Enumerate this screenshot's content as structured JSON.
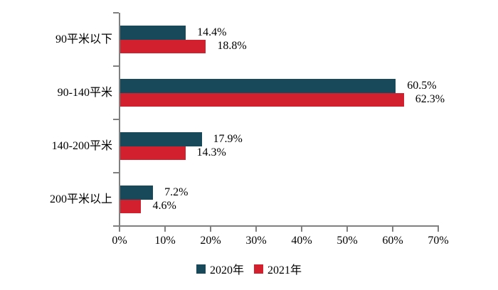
{
  "chart_data": {
    "type": "bar",
    "orientation": "horizontal",
    "title": "",
    "categories": [
      "90平米以下",
      "90-140平米",
      "140-200平米",
      "200平米以上"
    ],
    "series": [
      {
        "name": "2020年",
        "color": "#17495A",
        "values": [
          14.4,
          60.5,
          17.9,
          7.2
        ],
        "labels": [
          "14.4%",
          "60.5%",
          "17.9%",
          "7.2%"
        ]
      },
      {
        "name": "2021年",
        "color": "#D2202F",
        "values": [
          18.8,
          62.3,
          14.3,
          4.6
        ],
        "labels": [
          "18.8%",
          "62.3%",
          "14.3%",
          "4.6%"
        ]
      }
    ],
    "x_ticks": [
      "0%",
      "10%",
      "20%",
      "30%",
      "40%",
      "50%",
      "60%",
      "70%"
    ],
    "xlim": [
      0,
      70
    ],
    "grid": false,
    "legend_position": "bottom-center",
    "axis_color": "#808080",
    "text_color": "#000000"
  }
}
